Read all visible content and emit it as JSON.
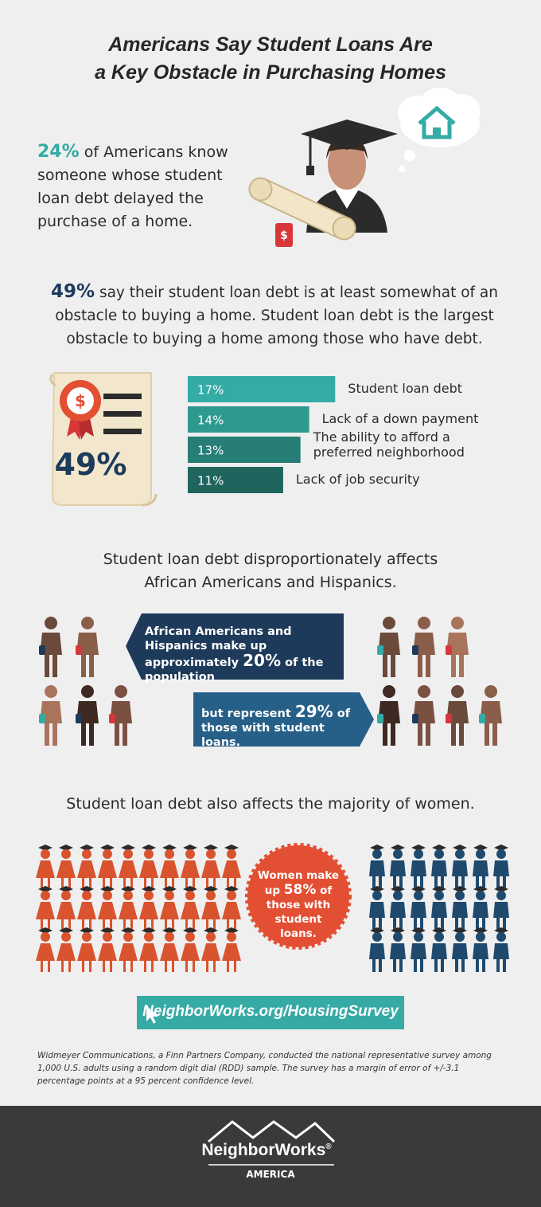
{
  "title": {
    "lines": [
      "Americans Say Student Loans Are",
      "a Key Obstacle in Purchasing Homes"
    ]
  },
  "stat1": {
    "highlight": "24%",
    "text": "of Americans know someone whose student loan debt delayed the purchase of a home."
  },
  "illustration": {
    "tag": "$"
  },
  "stat2": {
    "highlight": "49%",
    "text": "say their student loan debt is at least somewhat of an obstacle to buying a home. Student loan debt is the largest obstacle to buying a home among those who have debt."
  },
  "badge": {
    "symbol": "$",
    "value": "49%"
  },
  "chart_data": {
    "type": "bar",
    "orientation": "horizontal",
    "categories": [
      "Student loan debt",
      "Lack of a down payment",
      "The ability to afford a preferred neighborhood",
      "Lack of job security"
    ],
    "values": [
      17,
      14,
      13,
      11
    ],
    "value_labels": [
      "17%",
      "14%",
      "13%",
      "11%"
    ],
    "colors": [
      "#35aba6",
      "#2d998f",
      "#267e76",
      "#1f655e"
    ]
  },
  "section3": {
    "heading": "Student loan debt disproportionately affects African Americans and Hispanics.",
    "callout1": {
      "pre": "African Americans and Hispanics make up approximately",
      "highlight": "20%",
      "post": "of the population"
    },
    "callout2": {
      "pre": "but represent",
      "highlight": "29%",
      "post": "of those with student loans."
    }
  },
  "section4": {
    "heading": "Student loan debt also affects the majority of women.",
    "badge": {
      "pre": "Women make up",
      "highlight": "58%",
      "post": "of those with student loans."
    }
  },
  "link": "NeighborWorks.org/HousingSurvey",
  "footnote": "Widmeyer Communications, a Finn Partners Company, conducted the national representative survey among 1,000 U.S. adults using a random digit dial (RDD) sample. The survey has a margin of error of +/-3.1 percentage points at a 95 percent confidence level.",
  "footer": {
    "logo": "NeighborWorks",
    "registered": "®",
    "sub": "AMERICA"
  }
}
